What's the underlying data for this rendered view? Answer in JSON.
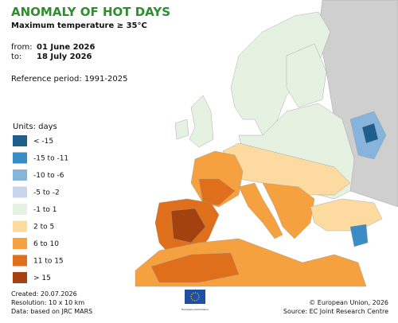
{
  "header": {
    "title": "ANOMALY OF HOT DAYS",
    "subtitle": "Maximum temperature ≥ 35°C",
    "from_label": "from:",
    "from": "01 June 2026",
    "to_label": "to:",
    "to": "18 July 2026",
    "reference": "Reference period: 1991-2025"
  },
  "legend": {
    "title": "Units: days",
    "items": [
      {
        "label": "< -15",
        "color": "#1d5e8e"
      },
      {
        "label": "-15 to -11",
        "color": "#3a8cc4"
      },
      {
        "label": "-10 to -6",
        "color": "#86b4dc"
      },
      {
        "label": "-5 to -2",
        "color": "#cad5ec"
      },
      {
        "label": "-1 to 1",
        "color": "#e6f2e1"
      },
      {
        "label": "2 to 5",
        "color": "#fddba0"
      },
      {
        "label": "6 to 10",
        "color": "#f5a140"
      },
      {
        "label": "11 to 15",
        "color": "#df6f1a"
      },
      {
        "label": "> 15",
        "color": "#a3420f"
      }
    ]
  },
  "footer": {
    "created": "Created: 20.07.2026",
    "resolution": "Resolution: 10 x 10 km",
    "data": "Data: based on JRC MARS",
    "copyright": "© European Union, 2026",
    "source": "Source: EC Joint Research Centre",
    "logo": "European Commission"
  }
}
